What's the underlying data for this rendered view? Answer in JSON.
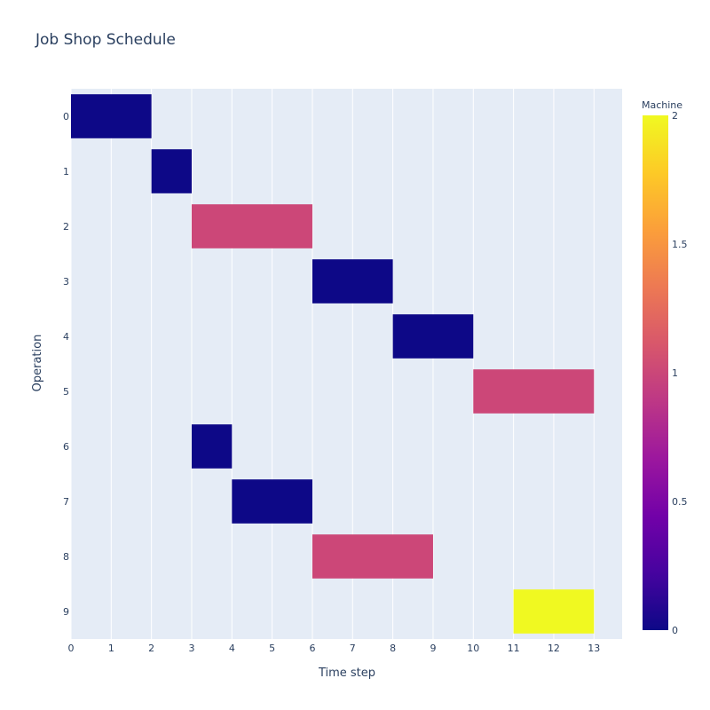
{
  "chart_data": {
    "type": "bar",
    "orientation": "horizontal",
    "title": "Job Shop Schedule",
    "xlabel": "Time step",
    "ylabel": "Operation",
    "xlim": [
      0,
      13.7
    ],
    "x_ticks": [
      0,
      1,
      2,
      3,
      4,
      5,
      6,
      7,
      8,
      9,
      10,
      11,
      12,
      13
    ],
    "grid": true,
    "categories": [
      "0",
      "1",
      "2",
      "3",
      "4",
      "5",
      "6",
      "7",
      "8",
      "9"
    ],
    "bars": [
      {
        "operation": "0",
        "start": 0,
        "end": 2,
        "machine": 0
      },
      {
        "operation": "1",
        "start": 2,
        "end": 3,
        "machine": 0
      },
      {
        "operation": "2",
        "start": 3,
        "end": 6,
        "machine": 1
      },
      {
        "operation": "3",
        "start": 6,
        "end": 8,
        "machine": 0
      },
      {
        "operation": "4",
        "start": 8,
        "end": 10,
        "machine": 0
      },
      {
        "operation": "5",
        "start": 10,
        "end": 13,
        "machine": 1
      },
      {
        "operation": "6",
        "start": 3,
        "end": 4,
        "machine": 0
      },
      {
        "operation": "7",
        "start": 4,
        "end": 6,
        "machine": 0
      },
      {
        "operation": "8",
        "start": 6,
        "end": 9,
        "machine": 1
      },
      {
        "operation": "9",
        "start": 11,
        "end": 13,
        "machine": 2
      }
    ],
    "colorbar": {
      "title": "Machine",
      "range": [
        0,
        2
      ],
      "ticks": [
        0,
        0.5,
        1,
        1.5,
        2
      ],
      "colors": {
        "0": "#0d0887",
        "1": "#cc4778",
        "2": "#f0f921"
      }
    }
  }
}
